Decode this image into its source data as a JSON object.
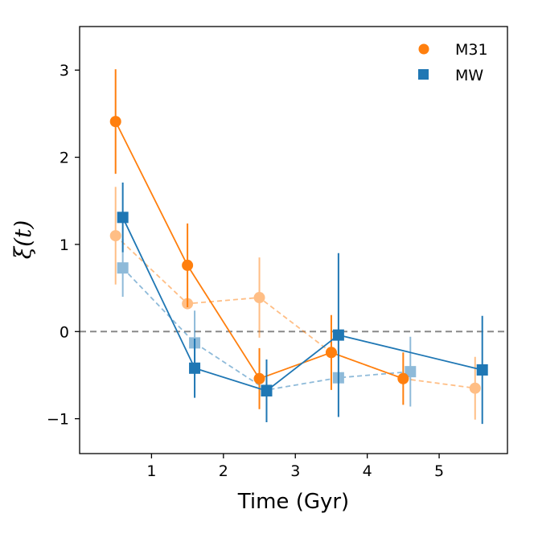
{
  "chart_data": {
    "type": "scatter",
    "title": "",
    "xlabel": "Time (Gyr)",
    "ylabel": "ξ(t)",
    "xlim": [
      0,
      5.95
    ],
    "ylim": [
      -1.4,
      3.5
    ],
    "xticks": [
      1,
      2,
      3,
      4,
      5
    ],
    "yticks": [
      -1,
      0,
      1,
      2,
      3
    ],
    "ytick_labels": [
      "−1",
      "0",
      "1",
      "2",
      "3"
    ],
    "reference_line": {
      "y": 0,
      "style": "dashed",
      "color": "#888888"
    },
    "grid": false,
    "legend": {
      "placement": "top-right",
      "entries": [
        "M31",
        "MW"
      ]
    },
    "series": [
      {
        "name": "M31",
        "color": "#ff7f0e",
        "marker": "circle",
        "line": "solid",
        "opacity": 1,
        "x": [
          0.5,
          1.5,
          2.5,
          3.5,
          4.5
        ],
        "y": [
          2.41,
          0.76,
          -0.54,
          -0.24,
          -0.54
        ],
        "err": [
          0.6,
          0.48,
          0.35,
          0.43,
          0.3
        ]
      },
      {
        "name": "MW",
        "color": "#1f77b4",
        "marker": "square",
        "line": "solid",
        "opacity": 1,
        "x": [
          0.6,
          1.6,
          2.6,
          3.6,
          5.6
        ],
        "y": [
          1.31,
          -0.42,
          -0.68,
          -0.04,
          -0.44
        ],
        "err": [
          0.4,
          0.34,
          0.36,
          0.94,
          0.62
        ]
      },
      {
        "name": "",
        "color": "#ff7f0e",
        "marker": "circle",
        "line": "dashed",
        "opacity": 0.5,
        "x": [
          0.5,
          1.5,
          2.5,
          3.5,
          4.5,
          5.5
        ],
        "y": [
          1.1,
          0.32,
          0.39,
          -0.24,
          -0.54,
          -0.65
        ],
        "err": [
          0.56,
          0.0,
          0.46,
          0.0,
          0.0,
          0.36
        ]
      },
      {
        "name": "",
        "color": "#1f77b4",
        "marker": "square",
        "line": "dashed",
        "opacity": 0.5,
        "x": [
          0.6,
          1.6,
          2.6,
          3.6,
          4.6
        ],
        "y": [
          0.73,
          -0.13,
          -0.67,
          -0.53,
          -0.46
        ],
        "err": [
          0.33,
          0.37,
          0.0,
          0.0,
          0.4
        ]
      }
    ]
  }
}
